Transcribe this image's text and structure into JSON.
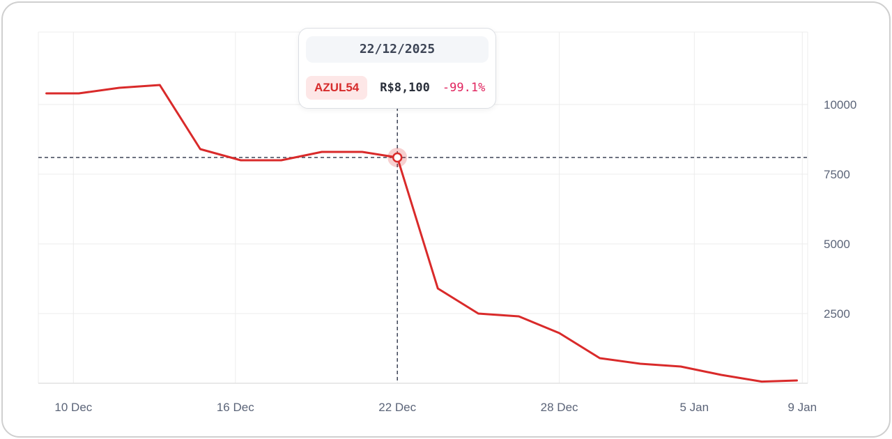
{
  "chart_data": {
    "type": "line",
    "series": [
      {
        "name": "AZUL54",
        "color": "#d92a2a",
        "points": [
          {
            "x": 9.0,
            "y": 10400
          },
          {
            "x": 10.2,
            "y": 10400
          },
          {
            "x": 11.7,
            "y": 10600
          },
          {
            "x": 13.2,
            "y": 10700
          },
          {
            "x": 14.7,
            "y": 8400
          },
          {
            "x": 16.2,
            "y": 8000
          },
          {
            "x": 17.7,
            "y": 8000
          },
          {
            "x": 19.2,
            "y": 8300
          },
          {
            "x": 20.7,
            "y": 8300
          },
          {
            "x": 22.0,
            "y": 8100
          },
          {
            "x": 23.5,
            "y": 3400
          },
          {
            "x": 25.0,
            "y": 2500
          },
          {
            "x": 26.5,
            "y": 2400
          },
          {
            "x": 28.0,
            "y": 1800
          },
          {
            "x": 29.5,
            "y": 900
          },
          {
            "x": 31.0,
            "y": 700
          },
          {
            "x": 32.5,
            "y": 600
          },
          {
            "x": 34.0,
            "y": 300
          },
          {
            "x": 35.5,
            "y": 60
          },
          {
            "x": 36.8,
            "y": 100
          }
        ]
      }
    ],
    "x_ticks": [
      {
        "value": 10,
        "label": "10 Dec"
      },
      {
        "value": 16,
        "label": "16 Dec"
      },
      {
        "value": 22,
        "label": "22 Dec"
      },
      {
        "value": 28,
        "label": "28 Dec"
      },
      {
        "value": 33,
        "label": "5 Jan"
      },
      {
        "value": 37,
        "label": "9 Jan"
      }
    ],
    "y_ticks": [
      10000,
      7500,
      5000,
      2500
    ],
    "xlim": [
      8.7,
      37.2
    ],
    "ylim": [
      0,
      12600
    ],
    "grid": true,
    "crosshair": {
      "x": 22.0,
      "y": 8100
    },
    "tooltip": {
      "date": "22/12/2025",
      "ticker": "AZUL54",
      "price": "R$8,100",
      "change": "-99.1%"
    }
  }
}
